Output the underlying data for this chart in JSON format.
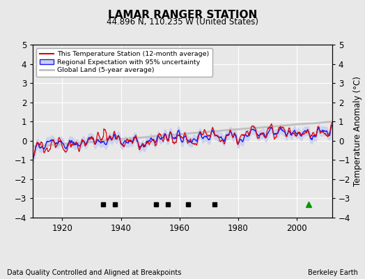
{
  "title": "LAMAR RANGER STATION",
  "subtitle": "44.896 N, 110.235 W (United States)",
  "xlabel_bottom": "Data Quality Controlled and Aligned at Breakpoints",
  "xlabel_right": "Berkeley Earth",
  "ylabel": "Temperature Anomaly (°C)",
  "ylim": [
    -4,
    5
  ],
  "xlim": [
    1910,
    2012
  ],
  "xticks": [
    1920,
    1940,
    1960,
    1980,
    2000
  ],
  "yticks": [
    -4,
    -3,
    -2,
    -1,
    0,
    1,
    2,
    3,
    4,
    5
  ],
  "bg_color": "#e8e8e8",
  "plot_bg_color": "#e8e8e8",
  "grid_color": "#ffffff",
  "legend_labels": [
    "This Temperature Station (12-month average)",
    "Regional Expectation with 95% uncertainty",
    "Global Land (5-year average)"
  ],
  "station_move_years": [],
  "record_gap_years": [
    2004
  ],
  "time_of_obs_years": [],
  "empirical_break_years": [
    1934,
    1938,
    1952,
    1956,
    1963,
    1972
  ],
  "seed": 12
}
